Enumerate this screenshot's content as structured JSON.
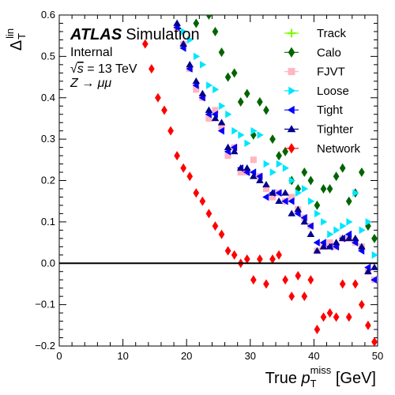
{
  "chart_data": {
    "type": "scatter",
    "xlim": [
      0,
      50
    ],
    "ylim": [
      -0.2,
      0.6
    ],
    "x_ticks": [
      "0",
      "10",
      "20",
      "30",
      "40",
      "50"
    ],
    "y_ticks": [
      "−0.2",
      "−0.1",
      "0.0",
      "0.1",
      "0.2",
      "0.3",
      "0.4",
      "0.5",
      "0.6"
    ],
    "xlabel": {
      "prefix": "True ",
      "var": "p",
      "sub": "T",
      "sup": "miss",
      "suffix": " [GeV]"
    },
    "ylabel": {
      "var": "Δ",
      "sub": "T",
      "sup": "lin"
    },
    "reference_line_y": 0,
    "annotations": {
      "atlas": "ATLAS",
      "simulation": "Simulation",
      "internal": "Internal",
      "energy_prefix": "√",
      "energy_var": "s",
      "energy_value": " = 13 TeV",
      "process": "Z → μμ"
    },
    "legend_position": "top-right",
    "series": [
      {
        "name": "Track",
        "color": "#7cfc00",
        "marker": "cross",
        "x": [],
        "y": []
      },
      {
        "name": "Calo",
        "color": "#006400",
        "marker": "diamond",
        "x": [
          21.5,
          23.5,
          24.5,
          25.5,
          26.5,
          27.5,
          28.5,
          29.5,
          30.5,
          31.5,
          32.5,
          33.5,
          34.5,
          35.5,
          36.5,
          37.5,
          38.5,
          39.5,
          40.5,
          41.5,
          42.5,
          43.5,
          44.5,
          45.5,
          46.5,
          47.5,
          48.5,
          49.5
        ],
        "y": [
          0.58,
          0.6,
          0.56,
          0.51,
          0.45,
          0.46,
          0.39,
          0.41,
          0.31,
          0.39,
          0.37,
          0.3,
          0.26,
          0.27,
          0.2,
          0.18,
          0.22,
          0.2,
          0.14,
          0.18,
          0.18,
          0.21,
          0.23,
          0.15,
          0.17,
          0.22,
          0.09,
          0.06
        ]
      },
      {
        "name": "FJVT",
        "color": "#ffb6c1",
        "marker": "square",
        "x": [
          18.5,
          19.5,
          20.5,
          21.5,
          22.5,
          23.5,
          24.5,
          25.5,
          26.5,
          27.5,
          28.5,
          29.5,
          30.5,
          31.5,
          32.5,
          33.5,
          34.5,
          35.5,
          36.5,
          37.5,
          38.5,
          39.5,
          40.5,
          41.5,
          42.5,
          43.5,
          44.5,
          45.5,
          46.5,
          47.5,
          48.5,
          49.5
        ],
        "y": [
          0.57,
          0.53,
          0.47,
          0.42,
          0.4,
          0.35,
          0.37,
          0.33,
          0.26,
          0.28,
          0.22,
          0.22,
          0.25,
          0.21,
          0.18,
          0.16,
          0.17,
          0.15,
          0.16,
          0.13,
          0.11,
          0.09,
          0.03,
          0.04,
          0.05,
          0.04,
          0.06,
          0.06,
          0.05,
          0.04,
          -0.02,
          -0.04
        ]
      },
      {
        "name": "Loose",
        "color": "#00e5ff",
        "marker": "triangle-right",
        "x": [
          19.5,
          20.5,
          21.5,
          22.5,
          23.5,
          24.5,
          25.5,
          26.5,
          27.5,
          28.5,
          29.5,
          30.5,
          31.5,
          32.5,
          33.5,
          34.5,
          35.5,
          36.5,
          37.5,
          38.5,
          39.5,
          40.5,
          41.5,
          42.5,
          43.5,
          44.5,
          45.5,
          46.5,
          47.5,
          48.5,
          49.5
        ],
        "y": [
          0.56,
          0.54,
          0.5,
          0.48,
          0.43,
          0.42,
          0.38,
          0.36,
          0.32,
          0.31,
          0.29,
          0.32,
          0.31,
          0.24,
          0.22,
          0.24,
          0.23,
          0.2,
          0.17,
          0.18,
          0.15,
          0.12,
          0.1,
          0.07,
          0.08,
          0.09,
          0.1,
          0.17,
          0.08,
          0.1,
          0.02
        ]
      },
      {
        "name": "Tight",
        "color": "#0000ff",
        "marker": "triangle-left",
        "x": [
          18.5,
          19.5,
          20.5,
          21.5,
          22.5,
          23.5,
          24.5,
          25.5,
          26.5,
          27.5,
          28.5,
          29.5,
          30.5,
          31.5,
          32.5,
          33.5,
          34.5,
          35.5,
          36.5,
          37.5,
          38.5,
          39.5,
          40.5,
          41.5,
          42.5,
          43.5,
          44.5,
          45.5,
          46.5,
          47.5,
          48.5,
          49.5
        ],
        "y": [
          0.57,
          0.52,
          0.47,
          0.43,
          0.4,
          0.36,
          0.36,
          0.32,
          0.27,
          0.28,
          0.23,
          0.22,
          0.22,
          0.21,
          0.16,
          0.17,
          0.17,
          0.15,
          0.15,
          0.12,
          0.11,
          0.09,
          0.05,
          0.05,
          0.04,
          0.04,
          0.06,
          0.07,
          0.05,
          0.03,
          -0.01,
          -0.04
        ]
      },
      {
        "name": "Tighter",
        "color": "#00008b",
        "marker": "triangle-up",
        "x": [
          18.5,
          19.5,
          20.5,
          21.5,
          22.5,
          23.5,
          24.5,
          25.5,
          26.5,
          27.5,
          28.5,
          29.5,
          30.5,
          31.5,
          32.5,
          33.5,
          34.5,
          35.5,
          36.5,
          37.5,
          38.5,
          39.5,
          40.5,
          41.5,
          42.5,
          43.5,
          44.5,
          45.5,
          46.5,
          47.5,
          48.5,
          49.5
        ],
        "y": [
          0.58,
          0.53,
          0.48,
          0.44,
          0.41,
          0.37,
          0.35,
          0.34,
          0.28,
          0.27,
          0.23,
          0.23,
          0.21,
          0.2,
          0.19,
          0.17,
          0.15,
          0.17,
          0.12,
          0.13,
          0.1,
          0.07,
          0.03,
          0.04,
          0.04,
          0.05,
          0.06,
          0.06,
          0.06,
          0.04,
          -0.02,
          -0.01
        ]
      },
      {
        "name": "Network",
        "color": "#ff0000",
        "marker": "diamond",
        "x": [
          13.5,
          14.5,
          15.5,
          16.5,
          17.5,
          18.5,
          19.5,
          20.5,
          21.5,
          22.5,
          23.5,
          24.5,
          25.5,
          26.5,
          27.5,
          28.5,
          29.5,
          30.5,
          31.5,
          32.5,
          33.5,
          34.5,
          35.5,
          36.5,
          37.5,
          38.5,
          39.5,
          40.5,
          41.5,
          42.5,
          43.5,
          44.5,
          45.5,
          46.5,
          47.5,
          48.5,
          49.5
        ],
        "y": [
          0.53,
          0.47,
          0.4,
          0.37,
          0.32,
          0.26,
          0.23,
          0.21,
          0.17,
          0.15,
          0.12,
          0.09,
          0.07,
          0.03,
          0.02,
          0.0,
          0.01,
          -0.04,
          0.01,
          -0.05,
          0.01,
          0.02,
          -0.04,
          -0.08,
          -0.03,
          -0.08,
          -0.04,
          -0.16,
          -0.13,
          -0.12,
          -0.13,
          -0.05,
          -0.13,
          -0.05,
          -0.1,
          -0.15,
          -0.19
        ]
      }
    ]
  }
}
